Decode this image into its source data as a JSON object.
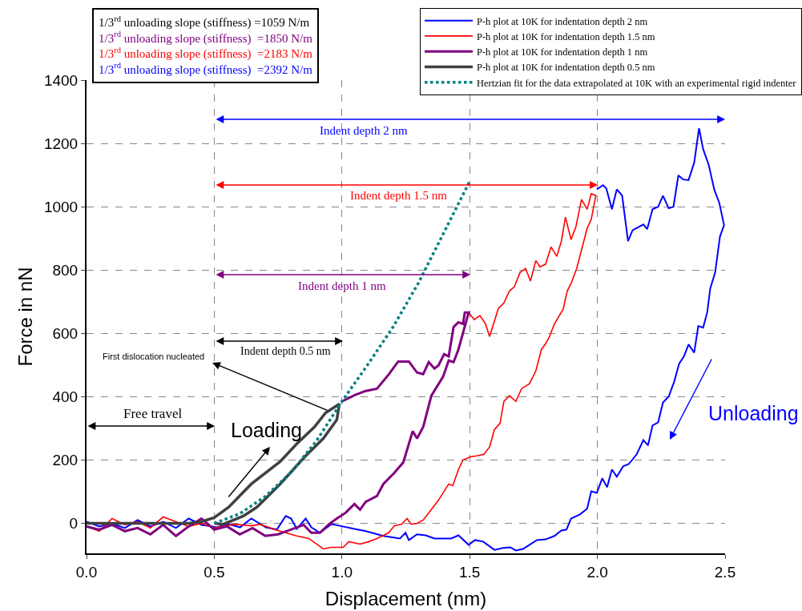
{
  "chart_data": {
    "type": "line",
    "xlabel": "Displacement (nm)",
    "ylabel": "Force in nN",
    "xlim": [
      0,
      2.5
    ],
    "ylim": [
      -95,
      1400
    ],
    "xticks": [
      {
        "value": 0,
        "label": "0.0"
      },
      {
        "value": 0.5,
        "label": "0.5"
      },
      {
        "value": 1,
        "label": "1.0"
      },
      {
        "value": 1.5,
        "label": "1.5"
      },
      {
        "value": 2,
        "label": "2.0"
      },
      {
        "value": 2.5,
        "label": "2.5"
      }
    ],
    "yticks": [
      0,
      200,
      400,
      600,
      800,
      1000,
      1200,
      1400
    ],
    "grid": true,
    "legend": "top right",
    "marker": "none",
    "series": [
      {
        "name": "P-h plot at 10K for indentation depth 2 nm",
        "color": "#0000ff",
        "line_style": "solid",
        "x": [
          0,
          0.05,
          0.1,
          0.15,
          0.2,
          0.25,
          0.3,
          0.35,
          0.4,
          0.45,
          0.51,
          0.557,
          0.601,
          0.645,
          0.702,
          0.745,
          0.78,
          0.801,
          0.823,
          0.858,
          0.88,
          0.914,
          0.958,
          0.992,
          1.049,
          1.093,
          1.162,
          1.227,
          1.249,
          1.262,
          1.294,
          1.328,
          1.362,
          1.396,
          1.428,
          1.456,
          1.496,
          1.521,
          1.553,
          1.597,
          1.631,
          1.659,
          1.681,
          1.709,
          1.738,
          1.763,
          1.797,
          1.832,
          1.859,
          1.879,
          1.897,
          1.932,
          1.96,
          1.976,
          1.998,
          2.019,
          2.038,
          2.057,
          2.076,
          2.101,
          2.123,
          2.154,
          2.18,
          2.198,
          2.216,
          2.238,
          2.257,
          2.279,
          2.301,
          2.32,
          2.339,
          2.357,
          2.379,
          2.395,
          2.414,
          2.43,
          2.442,
          2.461,
          2.48,
          2.496,
          2.477,
          2.458,
          2.436,
          2.414,
          2.398,
          2.379,
          2.357,
          2.336,
          2.317,
          2.298,
          2.279,
          2.257,
          2.238,
          2.216,
          2.195,
          2.18,
          2.138,
          2.12,
          2.097,
          2.076,
          2.057,
          2.035,
          2.022,
          1.998
        ],
        "values": [
          5,
          -10,
          0,
          -15,
          10,
          -10,
          5,
          -15,
          15,
          -5,
          -13,
          -3,
          -13,
          15,
          -13,
          -20,
          23,
          15,
          -18,
          15,
          -13,
          -30,
          -3,
          -8,
          -18,
          -25,
          -40,
          -48,
          -30,
          -53,
          -35,
          -38,
          -48,
          -48,
          -48,
          -38,
          -68,
          -53,
          -58,
          -84,
          -78,
          -76,
          -86,
          -81,
          -66,
          -53,
          -51,
          -40,
          -23,
          -20,
          15,
          28,
          46,
          101,
          96,
          142,
          114,
          170,
          147,
          180,
          187,
          218,
          263,
          246,
          309,
          319,
          382,
          400,
          448,
          504,
          527,
          565,
          539,
          623,
          618,
          666,
          742,
          792,
          906,
          942,
          1013,
          1053,
          1132,
          1182,
          1248,
          1139,
          1084,
          1086,
          1099,
          1000,
          995,
          1035,
          1000,
          992,
          929,
          944,
          926,
          891,
          1035,
          1055,
          992,
          1058,
          1068,
          1055
        ]
      },
      {
        "name": "P-h plot at 10K for indentation depth 1.5 nm",
        "color": "#ff0000",
        "line_style": "solid",
        "x": [
          0,
          0.05,
          0.1,
          0.15,
          0.2,
          0.25,
          0.3,
          0.35,
          0.4,
          0.45,
          0.5,
          0.58,
          0.645,
          0.68,
          0.736,
          0.78,
          0.823,
          0.87,
          0.902,
          0.927,
          0.958,
          1.005,
          1.027,
          1.071,
          1.105,
          1.137,
          1.183,
          1.205,
          1.234,
          1.255,
          1.271,
          1.294,
          1.318,
          1.34,
          1.378,
          1.418,
          1.434,
          1.456,
          1.474,
          1.503,
          1.528,
          1.556,
          1.578,
          1.597,
          1.619,
          1.634,
          1.656,
          1.681,
          1.703,
          1.734,
          1.759,
          1.781,
          1.797,
          1.81,
          1.832,
          1.866,
          1.882,
          1.897,
          1.919,
          1.96,
          1.976,
          1.994,
          1.976,
          1.96,
          1.938,
          1.916,
          1.897,
          1.875,
          1.859,
          1.841,
          1.819,
          1.797,
          1.775,
          1.759,
          1.738,
          1.719,
          1.697,
          1.675,
          1.656,
          1.634,
          1.612,
          1.578,
          1.562,
          1.54,
          1.518,
          1.496
        ],
        "values": [
          -10,
          -25,
          15,
          -5,
          5,
          -15,
          20,
          5,
          -10,
          0,
          -15,
          -3,
          -8,
          -3,
          -20,
          -30,
          -40,
          -48,
          -66,
          -81,
          -76,
          -76,
          -58,
          -66,
          -58,
          -48,
          -30,
          -8,
          -3,
          15,
          -3,
          0,
          10,
          33,
          73,
          124,
          119,
          170,
          200,
          210,
          213,
          218,
          241,
          296,
          316,
          385,
          403,
          385,
          425,
          441,
          481,
          549,
          567,
          585,
          630,
          676,
          734,
          757,
          805,
          932,
          960,
          1035,
          1041,
          992,
          1023,
          937,
          896,
          967,
          891,
          843,
          873,
          818,
          810,
          830,
          765,
          805,
          792,
          747,
          734,
          696,
          678,
          590,
          630,
          656,
          643,
          666
        ]
      },
      {
        "name": "P-h plot at 10K for indentation depth 1 nm",
        "color": "#800080",
        "line_style": "solid",
        "x": [
          0,
          0.05,
          0.1,
          0.15,
          0.2,
          0.25,
          0.3,
          0.35,
          0.4,
          0.45,
          0.5,
          0.55,
          0.6,
          0.65,
          0.7,
          0.75,
          0.8,
          0.85,
          0.88,
          0.914,
          0.949,
          0.98,
          1.014,
          1.049,
          1.071,
          1.093,
          1.137,
          1.162,
          1.205,
          1.24,
          1.277,
          1.294,
          1.318,
          1.35,
          1.396,
          1.418,
          1.437,
          1.456,
          1.496,
          1.481,
          1.474,
          1.456,
          1.437,
          1.418,
          1.4,
          1.378,
          1.362,
          1.34,
          1.318,
          1.294,
          1.262,
          1.22,
          1.183,
          1.137,
          1.093,
          1.05,
          1.0
        ],
        "values": [
          -10,
          -20,
          -5,
          -25,
          -15,
          -35,
          -5,
          -40,
          -10,
          15,
          -20,
          -10,
          -35,
          -15,
          -40,
          -35,
          -20,
          -5,
          -30,
          -30,
          -3,
          15,
          33,
          61,
          43,
          68,
          86,
          124,
          159,
          192,
          291,
          268,
          304,
          403,
          463,
          514,
          509,
          549,
          666,
          666,
          630,
          635,
          620,
          527,
          534,
          499,
          489,
          509,
          471,
          476,
          511,
          511,
          470,
          425,
          418,
          405,
          385
        ]
      },
      {
        "name": "P-h plot at 10K for indentation depth 0.5 nm",
        "color": "#404040",
        "line_style": "solid",
        "x": [
          0,
          0.1,
          0.2,
          0.3,
          0.4,
          0.45,
          0.5,
          0.557,
          0.645,
          0.758,
          0.823,
          0.892,
          0.936,
          0.99,
          0.98,
          0.927,
          0.858,
          0.758,
          0.667,
          0.614,
          0.535,
          0.5
        ],
        "values": [
          0,
          0,
          0,
          0,
          0,
          5,
          18,
          51,
          124,
          195,
          251,
          304,
          349,
          377,
          327,
          268,
          213,
          124,
          51,
          23,
          -3,
          0
        ]
      },
      {
        "name": "Hertzian fit for the data extrapolated at 10K with an experimental rigid indenter",
        "color": "#008080",
        "line_style": "dotted",
        "x": [
          0.5,
          0.6,
          0.7,
          0.8,
          0.9,
          1.0,
          1.1,
          1.2,
          1.3,
          1.4,
          1.5
        ],
        "values": [
          0,
          30,
          85,
          160,
          260,
          385,
          500,
          620,
          760,
          920,
          1080
        ]
      }
    ],
    "annotations": [
      "1/3$^{rd}$ unloading slope (stiffness) =1059 N/m",
      "1/3$^{rd}$ unloading slope (stiffness)  =1850 N/m",
      "1/3$^{rd}$ unloading slope (stiffness)  =2183 N/m",
      "1/3$^{rd}$ unloading slope (stiffness)  =2392 N/m",
      "Indent depth 2 nm",
      "Indent depth 1.5 nm",
      "Indent depth 1 nm",
      "Indent depth 0.5 nm",
      "Free travel",
      "First dislocation nucleated",
      "Loading",
      "Unloading"
    ]
  }
}
